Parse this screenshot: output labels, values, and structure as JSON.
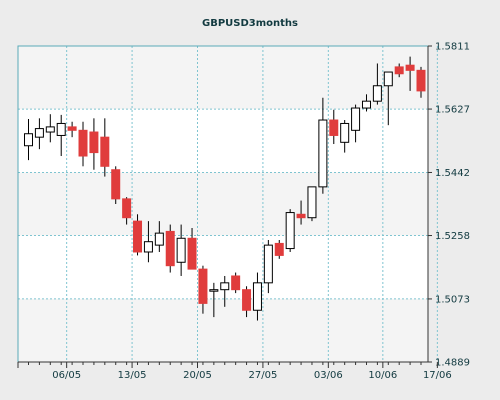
{
  "chart_data": {
    "type": "candlestick",
    "title": "GBPUSD3months",
    "xlabel": "",
    "ylabel": "",
    "ylim": [
      1.4889,
      1.5811
    ],
    "y_ticks": [
      "1.5811",
      "1.5627",
      "1.5442",
      "1.5258",
      "1.5073",
      "1.4889"
    ],
    "x_ticks": [
      "06/05",
      "13/05",
      "20/05",
      "27/05",
      "03/06",
      "10/06",
      "17/06"
    ],
    "grid": true,
    "colors": {
      "up_fill": "#ffffff",
      "down_fill": "#e03c3c",
      "outline": "#000000",
      "grid": "#7fc4d0",
      "plot_bg": "#ffffff",
      "band_bg": "#f4f4f4",
      "page_bg": "#ececec"
    },
    "candles": [
      {
        "open": 1.552,
        "high": 1.5598,
        "low": 1.5478,
        "close": 1.5555
      },
      {
        "open": 1.5545,
        "high": 1.56,
        "low": 1.551,
        "close": 1.557
      },
      {
        "open": 1.556,
        "high": 1.5612,
        "low": 1.553,
        "close": 1.5575
      },
      {
        "open": 1.555,
        "high": 1.561,
        "low": 1.549,
        "close": 1.5585
      },
      {
        "open": 1.5575,
        "high": 1.559,
        "low": 1.5545,
        "close": 1.5565
      },
      {
        "open": 1.5565,
        "high": 1.559,
        "low": 1.546,
        "close": 1.549
      },
      {
        "open": 1.556,
        "high": 1.56,
        "low": 1.545,
        "close": 1.55
      },
      {
        "open": 1.5545,
        "high": 1.56,
        "low": 1.543,
        "close": 1.546
      },
      {
        "open": 1.545,
        "high": 1.546,
        "low": 1.535,
        "close": 1.5365
      },
      {
        "open": 1.5365,
        "high": 1.537,
        "low": 1.529,
        "close": 1.531
      },
      {
        "open": 1.53,
        "high": 1.532,
        "low": 1.52,
        "close": 1.521
      },
      {
        "open": 1.521,
        "high": 1.53,
        "low": 1.518,
        "close": 1.524
      },
      {
        "open": 1.523,
        "high": 1.53,
        "low": 1.521,
        "close": 1.5265
      },
      {
        "open": 1.527,
        "high": 1.529,
        "low": 1.515,
        "close": 1.517
      },
      {
        "open": 1.518,
        "high": 1.529,
        "low": 1.514,
        "close": 1.525
      },
      {
        "open": 1.525,
        "high": 1.528,
        "low": 1.516,
        "close": 1.516
      },
      {
        "open": 1.516,
        "high": 1.517,
        "low": 1.503,
        "close": 1.506
      },
      {
        "open": 1.51,
        "high": 1.512,
        "low": 1.502,
        "close": 1.51
      },
      {
        "open": 1.51,
        "high": 1.514,
        "low": 1.505,
        "close": 1.512
      },
      {
        "open": 1.514,
        "high": 1.515,
        "low": 1.509,
        "close": 1.51
      },
      {
        "open": 1.51,
        "high": 1.511,
        "low": 1.502,
        "close": 1.504
      },
      {
        "open": 1.504,
        "high": 1.515,
        "low": 1.501,
        "close": 1.512
      },
      {
        "open": 1.512,
        "high": 1.5245,
        "low": 1.509,
        "close": 1.523
      },
      {
        "open": 1.5235,
        "high": 1.5245,
        "low": 1.519,
        "close": 1.52
      },
      {
        "open": 1.522,
        "high": 1.5335,
        "low": 1.521,
        "close": 1.5325
      },
      {
        "open": 1.532,
        "high": 1.536,
        "low": 1.529,
        "close": 1.531
      },
      {
        "open": 1.531,
        "high": 1.54,
        "low": 1.53,
        "close": 1.54
      },
      {
        "open": 1.54,
        "high": 1.566,
        "low": 1.538,
        "close": 1.5595
      },
      {
        "open": 1.5595,
        "high": 1.5625,
        "low": 1.5525,
        "close": 1.555
      },
      {
        "open": 1.553,
        "high": 1.5595,
        "low": 1.55,
        "close": 1.5585
      },
      {
        "open": 1.5565,
        "high": 1.564,
        "low": 1.553,
        "close": 1.563
      },
      {
        "open": 1.563,
        "high": 1.567,
        "low": 1.562,
        "close": 1.565
      },
      {
        "open": 1.565,
        "high": 1.576,
        "low": 1.564,
        "close": 1.5695
      },
      {
        "open": 1.5695,
        "high": 1.573,
        "low": 1.558,
        "close": 1.5735
      },
      {
        "open": 1.575,
        "high": 1.576,
        "low": 1.572,
        "close": 1.573
      },
      {
        "open": 1.5755,
        "high": 1.578,
        "low": 1.568,
        "close": 1.574
      },
      {
        "open": 1.574,
        "high": 1.575,
        "low": 1.566,
        "close": 1.568
      }
    ],
    "x_tick_after_candle": [
      3.5,
      9.5,
      15.5,
      21.5,
      27.5,
      32.5,
      37.5
    ]
  }
}
